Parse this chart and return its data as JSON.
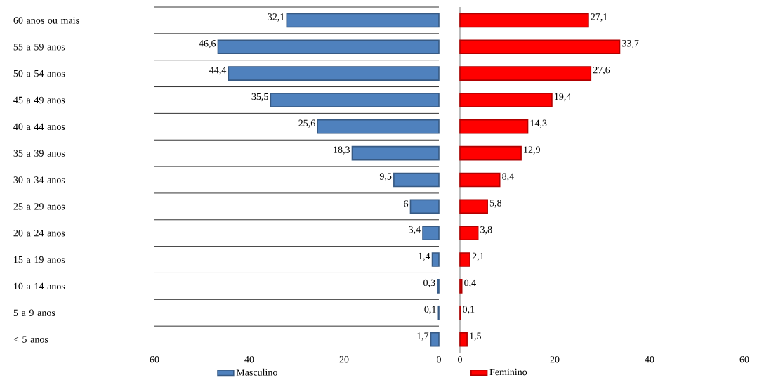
{
  "chart_data": [
    {
      "type": "bar",
      "orientation": "horizontal",
      "categories": [
        "60 anos ou mais",
        "55 a 59 anos",
        "50 a 54 anos",
        "45 a 49 anos",
        "40 a 44 anos",
        "35 a 39 anos",
        "30 a 34 anos",
        "25 a 29 anos",
        "20 a 24 anos",
        "15 a 19 anos",
        "10 a 14 anos",
        "5 a 9 anos",
        "< 5 anos"
      ],
      "series": [
        {
          "name": "Masculino",
          "color": "#4f81bd",
          "values": [
            32.1,
            46.6,
            44.4,
            35.5,
            25.6,
            18.3,
            9.5,
            6,
            3.4,
            1.4,
            0.3,
            0.1,
            1.7
          ],
          "value_labels": [
            "32,1",
            "46,6",
            "44,4",
            "35,5",
            "25,6",
            "18,3",
            "9,5",
            "6",
            "3,4",
            "1,4",
            "0,3",
            "0,1",
            "1,7"
          ]
        }
      ],
      "xlim": [
        60,
        0
      ],
      "xticks": [
        60,
        40,
        20,
        0
      ],
      "grid": "y",
      "legend": "bottom"
    },
    {
      "type": "bar",
      "orientation": "horizontal",
      "categories": [
        null,
        null,
        null,
        null,
        null,
        null,
        null,
        null,
        null,
        null,
        null,
        null,
        null
      ],
      "series": [
        {
          "name": "Feminino",
          "color": "#ff0000",
          "values": [
            27.1,
            33.7,
            27.6,
            19.4,
            14.3,
            12.9,
            8.4,
            5.8,
            3.8,
            2.1,
            0.4,
            0.1,
            1.5
          ],
          "value_labels": [
            "27,1",
            "33,7",
            "27,6",
            "19,4",
            "14,3",
            "12,9",
            "8,4",
            "5,8",
            "3,8",
            "2,1",
            "0,4",
            "0,1",
            "1,5"
          ]
        }
      ],
      "xlim": [
        0,
        60
      ],
      "xticks": [
        0,
        20,
        40,
        60
      ],
      "grid": "y",
      "legend": "bottom",
      "tick_labels": "x"
    }
  ]
}
